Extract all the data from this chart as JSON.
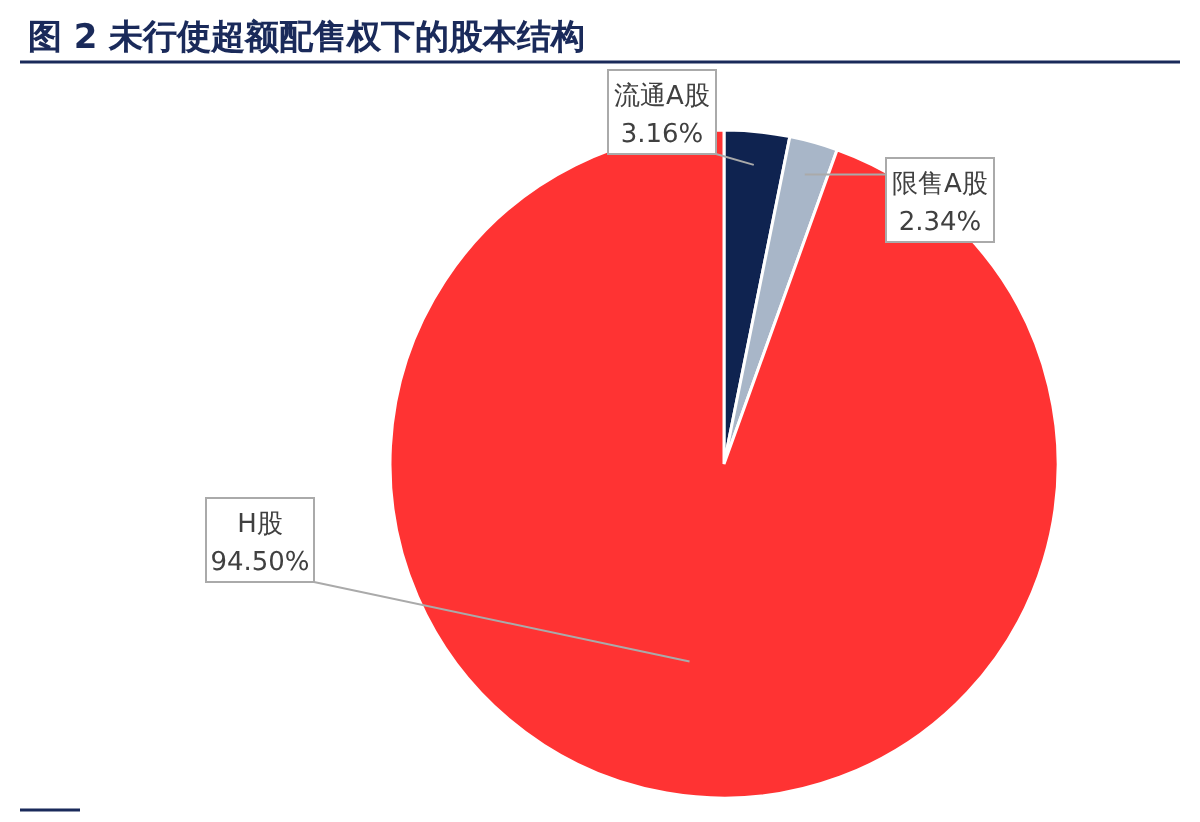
{
  "chart_data": {
    "type": "pie",
    "title": "图 2  未行使超额配售权下的股本结构",
    "categories": [
      "流通A股",
      "限售A股",
      "H股"
    ],
    "values": [
      3.16,
      2.34,
      94.5
    ],
    "value_labels": [
      "3.16%",
      "2.34%",
      "94.50%"
    ],
    "colors": [
      "#0f2350",
      "#a8b6c8",
      "#ff3333"
    ]
  }
}
